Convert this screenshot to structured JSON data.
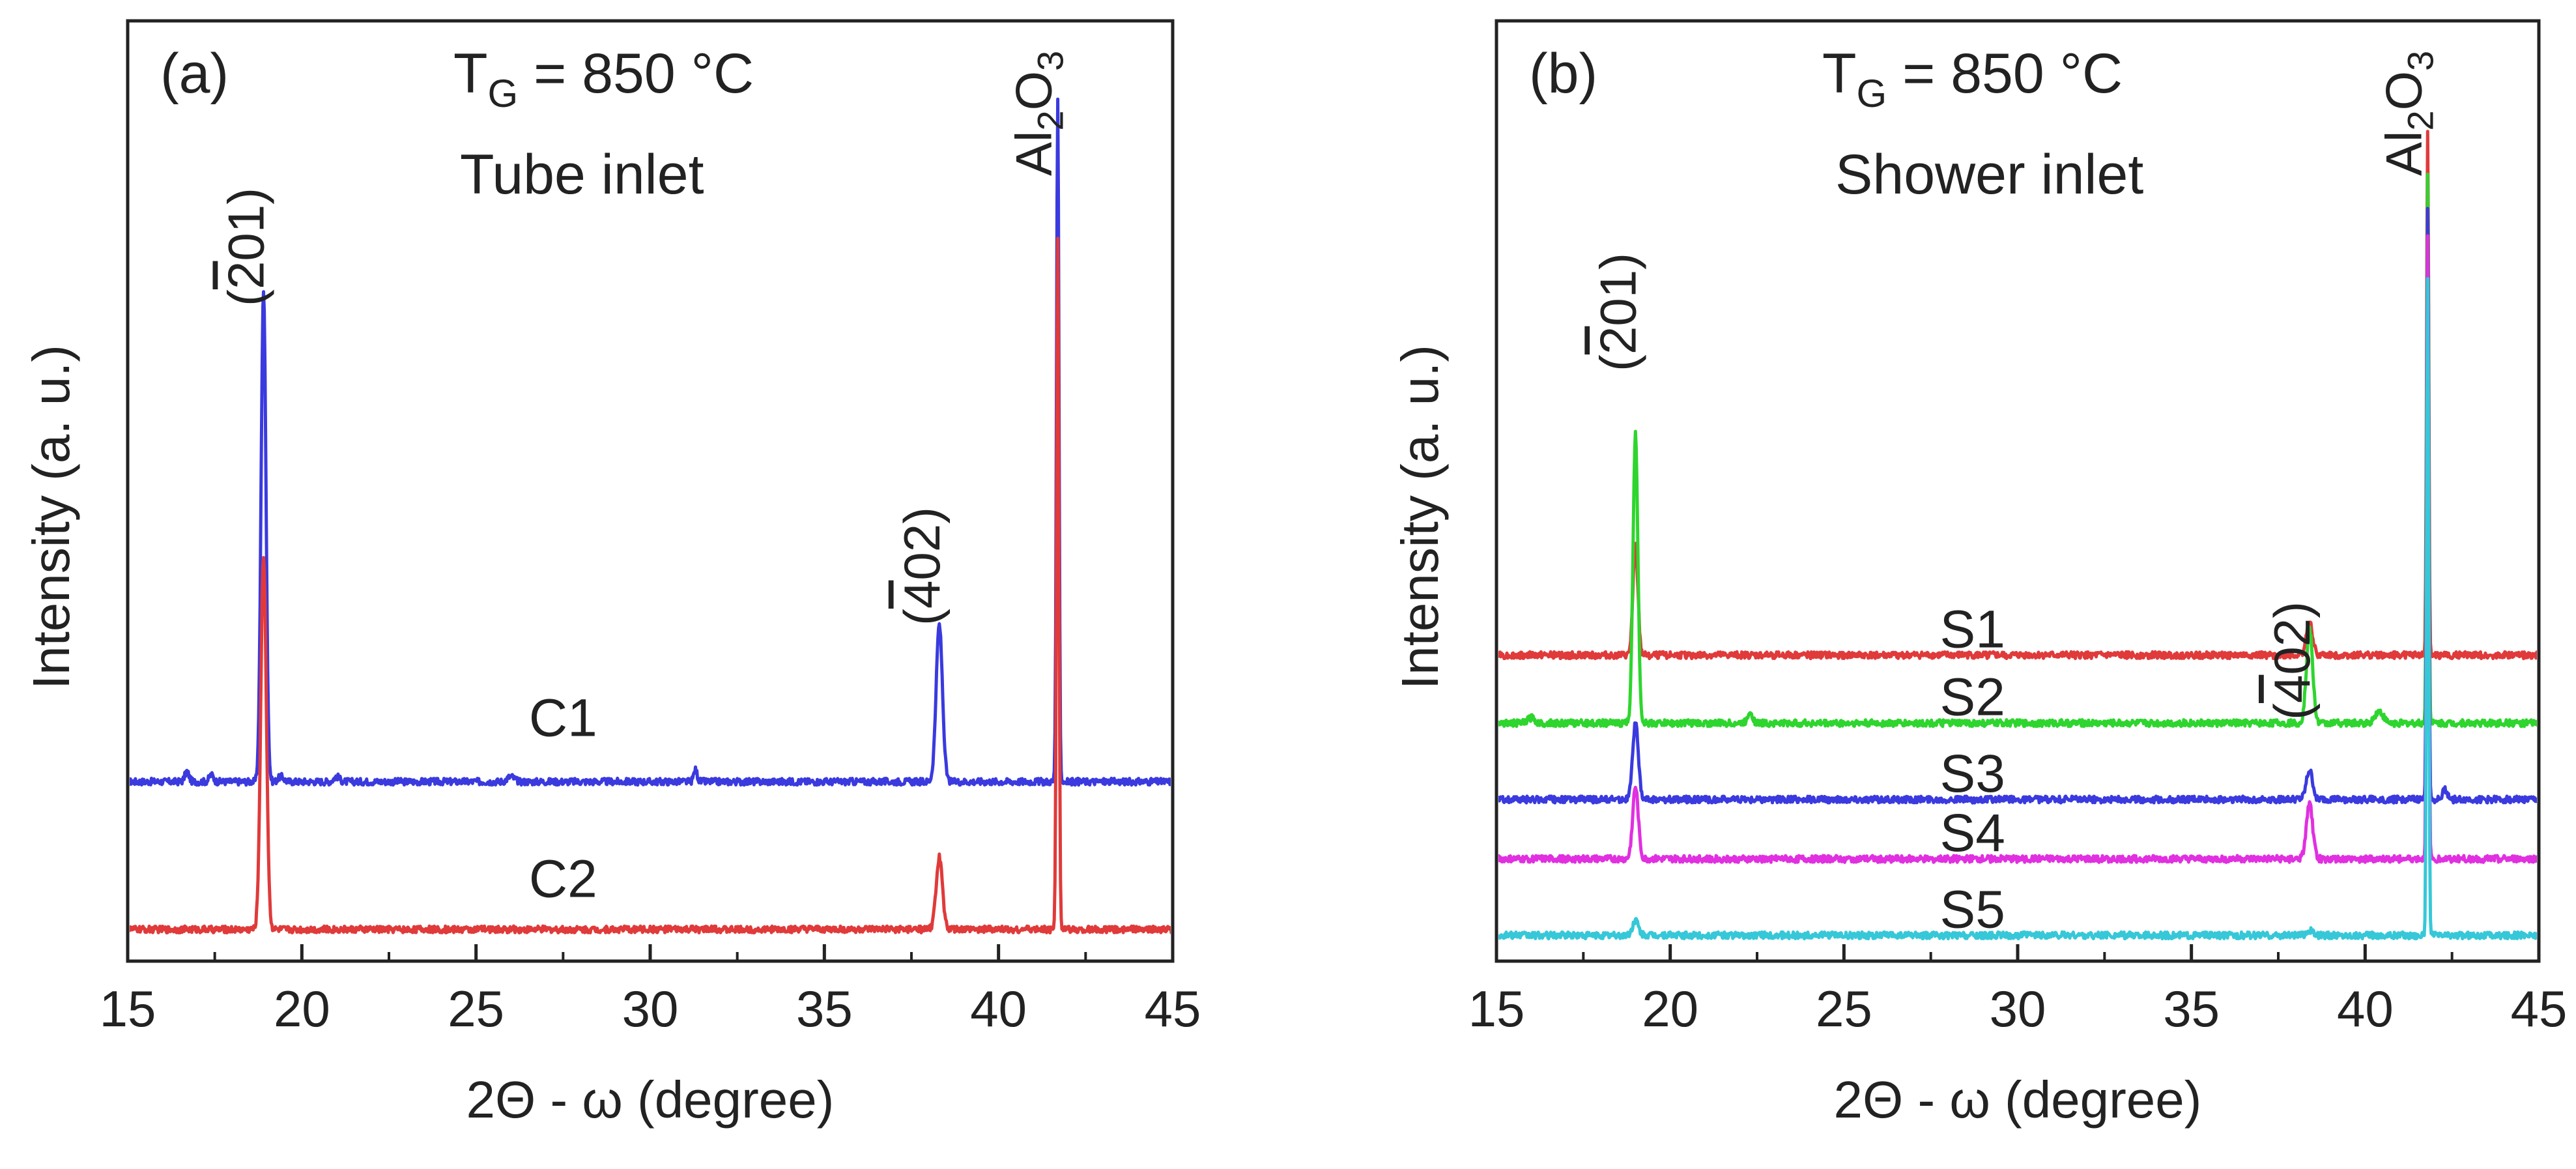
{
  "chart_data": [
    {
      "panel": "a",
      "type": "line",
      "panel_label": "(a)",
      "annotations": {
        "temperature": {
          "prefix": "T",
          "sub": "G",
          "suffix": " = 850 °C"
        },
        "inlet": "Tube inlet"
      },
      "xlabel": "2Θ - ω (degree)",
      "ylabel": "Intensity (a. u.)",
      "xlim": [
        15,
        45
      ],
      "ylim": [
        0,
        1
      ],
      "x_ticks": [
        15,
        20,
        25,
        30,
        35,
        40,
        45
      ],
      "peak_labels": [
        {
          "bar": "2",
          "rest": "01)",
          "x": 18.9
        },
        {
          "bar": "4",
          "rest": "02)",
          "x": 38.3
        },
        {
          "main": "Al",
          "sub1": "2",
          "mid": "O",
          "sub2": "3",
          "x": 41.7
        }
      ],
      "series": [
        {
          "name": "C1",
          "color": "#3a3adf",
          "baseline": 0.196,
          "peaks": [
            {
              "x": 16.7,
              "h": 0.012,
              "w": 0.06
            },
            {
              "x": 17.4,
              "h": 0.008,
              "w": 0.06
            },
            {
              "x": 18.9,
              "h": 0.58,
              "w": 0.07
            },
            {
              "x": 19.4,
              "h": 0.006,
              "w": 0.08
            },
            {
              "x": 21.0,
              "h": 0.006,
              "w": 0.08
            },
            {
              "x": 26.0,
              "h": 0.006,
              "w": 0.1
            },
            {
              "x": 31.3,
              "h": 0.014,
              "w": 0.05
            },
            {
              "x": 38.3,
              "h": 0.185,
              "w": 0.09
            },
            {
              "x": 41.7,
              "h": 0.8,
              "w": 0.035
            }
          ]
        },
        {
          "name": "C2",
          "color": "#e03a3a",
          "baseline": 0.022,
          "peaks": [
            {
              "x": 18.9,
              "h": 0.44,
              "w": 0.08
            },
            {
              "x": 38.3,
              "h": 0.085,
              "w": 0.09
            },
            {
              "x": 41.7,
              "h": 0.81,
              "w": 0.035
            }
          ]
        }
      ]
    },
    {
      "panel": "b",
      "type": "line",
      "panel_label": "(b)",
      "annotations": {
        "temperature": {
          "prefix": "T",
          "sub": "G",
          "suffix": " = 850 °C"
        },
        "inlet": "Shower inlet"
      },
      "xlabel": "2Θ - ω (degree)",
      "ylabel": "Intensity (a. u.)",
      "xlim": [
        15,
        45
      ],
      "ylim": [
        0,
        1
      ],
      "x_ticks": [
        15,
        20,
        25,
        30,
        35,
        40,
        45
      ],
      "peak_labels": [
        {
          "bar": "2",
          "rest": "01)",
          "x": 19.0
        },
        {
          "bar": "4",
          "rest": "02)",
          "x": 38.4
        },
        {
          "main": "Al",
          "sub1": "2",
          "mid": "O",
          "sub2": "3",
          "x": 41.8
        }
      ],
      "series": [
        {
          "name": "S1",
          "color": "#e03a3a",
          "baseline": 0.345,
          "peaks": [
            {
              "x": 19.0,
              "h": 0.13,
              "w": 0.07
            },
            {
              "x": 38.4,
              "h": 0.038,
              "w": 0.09
            },
            {
              "x": 41.8,
              "h": 0.62,
              "w": 0.03
            }
          ]
        },
        {
          "name": "S2",
          "color": "#2ed52e",
          "baseline": 0.265,
          "peaks": [
            {
              "x": 16.0,
              "h": 0.006,
              "w": 0.1
            },
            {
              "x": 19.0,
              "h": 0.34,
              "w": 0.07
            },
            {
              "x": 22.3,
              "h": 0.014,
              "w": 0.07
            },
            {
              "x": 38.4,
              "h": 0.11,
              "w": 0.09
            },
            {
              "x": 40.4,
              "h": 0.014,
              "w": 0.12
            },
            {
              "x": 41.8,
              "h": 0.65,
              "w": 0.03
            }
          ]
        },
        {
          "name": "S3",
          "color": "#3a3adf",
          "baseline": 0.175,
          "peaks": [
            {
              "x": 19.0,
              "h": 0.09,
              "w": 0.08
            },
            {
              "x": 38.4,
              "h": 0.034,
              "w": 0.09
            },
            {
              "x": 41.8,
              "h": 0.7,
              "w": 0.03
            },
            {
              "x": 42.3,
              "h": 0.012,
              "w": 0.07
            }
          ]
        },
        {
          "name": "S4",
          "color": "#e030e0",
          "baseline": 0.105,
          "peaks": [
            {
              "x": 19.0,
              "h": 0.085,
              "w": 0.08
            },
            {
              "x": 38.4,
              "h": 0.065,
              "w": 0.09
            },
            {
              "x": 41.8,
              "h": 0.73,
              "w": 0.03
            }
          ]
        },
        {
          "name": "S5",
          "color": "#36c8d8",
          "baseline": 0.015,
          "peaks": [
            {
              "x": 19.0,
              "h": 0.018,
              "w": 0.08
            },
            {
              "x": 38.4,
              "h": 0.006,
              "w": 0.09
            },
            {
              "x": 41.8,
              "h": 0.77,
              "w": 0.03
            }
          ]
        }
      ]
    }
  ]
}
